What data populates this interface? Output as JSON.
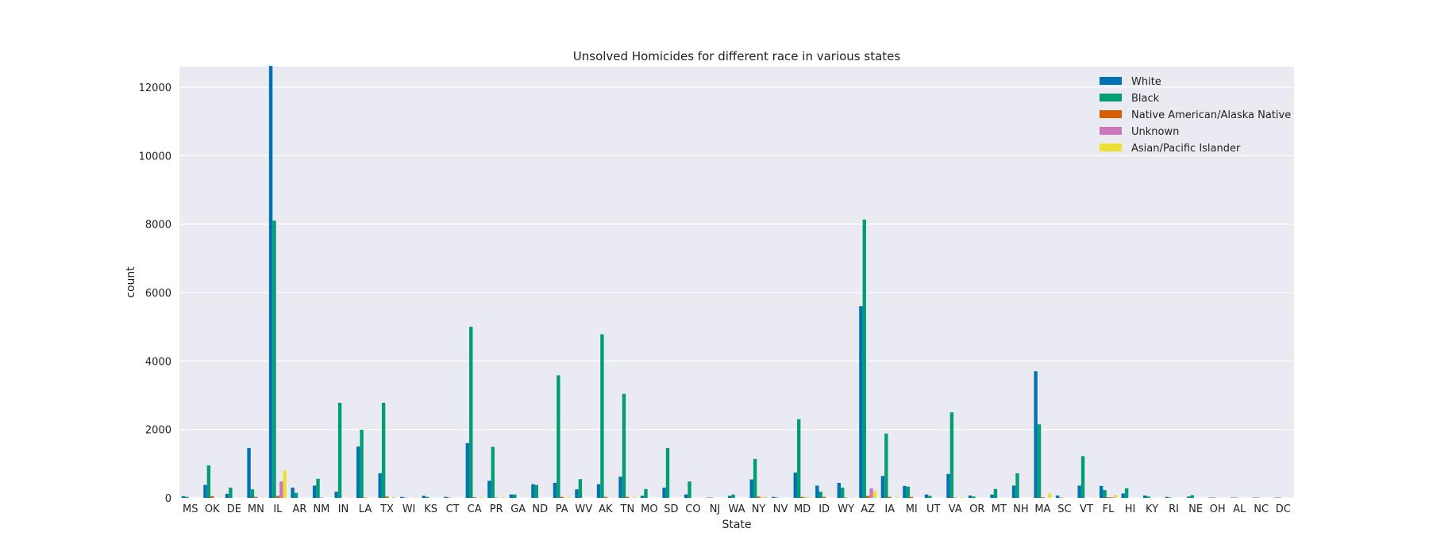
{
  "chart_data": {
    "type": "bar",
    "title": "Unsolved Homicides for different race in various states",
    "xlabel": "State",
    "ylabel": "count",
    "ylim": [
      0,
      12600
    ],
    "yticks": [
      0,
      2000,
      4000,
      6000,
      8000,
      10000,
      12000
    ],
    "grid": true,
    "legend_position": "top-right",
    "categories": [
      "MS",
      "OK",
      "DE",
      "MN",
      "IL",
      "AR",
      "NM",
      "IN",
      "LA",
      "TX",
      "WI",
      "KS",
      "CT",
      "CA",
      "PR",
      "GA",
      "ND",
      "PA",
      "WV",
      "AK",
      "TN",
      "MO",
      "SD",
      "CO",
      "NJ",
      "WA",
      "NY",
      "NV",
      "MD",
      "ID",
      "WY",
      "AZ",
      "IA",
      "MI",
      "UT",
      "VA",
      "OR",
      "MT",
      "NH",
      "MA",
      "SC",
      "VT",
      "FL",
      "HI",
      "KY",
      "RI",
      "NE",
      "OH",
      "AL",
      "NC",
      "DC"
    ],
    "series": [
      {
        "name": "White",
        "color": "#0173b2",
        "values": [
          50,
          380,
          120,
          1460,
          12620,
          300,
          360,
          180,
          1500,
          720,
          30,
          60,
          30,
          1600,
          500,
          100,
          400,
          440,
          250,
          400,
          620,
          60,
          300,
          100,
          10,
          60,
          540,
          30,
          740,
          360,
          440,
          5600,
          640,
          350,
          100,
          700,
          70,
          100,
          360,
          3700,
          70,
          360,
          350,
          130,
          70,
          30,
          40,
          10,
          10,
          10,
          10
        ]
      },
      {
        "name": "Black",
        "color": "#029e73",
        "values": [
          30,
          950,
          300,
          250,
          8100,
          150,
          560,
          2780,
          1990,
          2780,
          10,
          30,
          10,
          5000,
          1490,
          100,
          380,
          3580,
          550,
          4780,
          3040,
          260,
          1460,
          480,
          10,
          100,
          1140,
          10,
          2300,
          180,
          300,
          8130,
          1880,
          330,
          60,
          2500,
          40,
          260,
          720,
          2150,
          10,
          1220,
          230,
          280,
          40,
          10,
          80,
          10,
          10,
          10,
          10
        ]
      },
      {
        "name": "Native American/Alaska Native",
        "color": "#d55e00",
        "values": [
          0,
          50,
          0,
          30,
          60,
          0,
          10,
          0,
          10,
          40,
          0,
          0,
          0,
          20,
          10,
          0,
          0,
          30,
          0,
          30,
          30,
          0,
          0,
          0,
          0,
          0,
          40,
          0,
          30,
          30,
          10,
          60,
          30,
          30,
          0,
          10,
          0,
          0,
          0,
          20,
          0,
          0,
          20,
          0,
          0,
          0,
          0,
          0,
          0,
          0,
          0
        ]
      },
      {
        "name": "Unknown",
        "color": "#cc78bc",
        "values": [
          0,
          0,
          0,
          0,
          480,
          0,
          0,
          0,
          0,
          0,
          0,
          0,
          0,
          0,
          0,
          0,
          0,
          0,
          0,
          0,
          0,
          0,
          0,
          0,
          0,
          0,
          10,
          0,
          10,
          0,
          0,
          280,
          0,
          0,
          0,
          0,
          0,
          0,
          0,
          0,
          0,
          0,
          20,
          0,
          0,
          0,
          0,
          0,
          0,
          0,
          0
        ]
      },
      {
        "name": "Asian/Pacific Islander",
        "color": "#ece133",
        "values": [
          0,
          10,
          0,
          10,
          800,
          0,
          0,
          10,
          0,
          30,
          10,
          0,
          0,
          20,
          20,
          0,
          0,
          20,
          0,
          10,
          20,
          0,
          0,
          0,
          0,
          0,
          30,
          0,
          20,
          0,
          10,
          200,
          20,
          0,
          0,
          20,
          0,
          0,
          0,
          130,
          0,
          10,
          90,
          0,
          0,
          0,
          0,
          0,
          0,
          0,
          0
        ]
      }
    ]
  }
}
